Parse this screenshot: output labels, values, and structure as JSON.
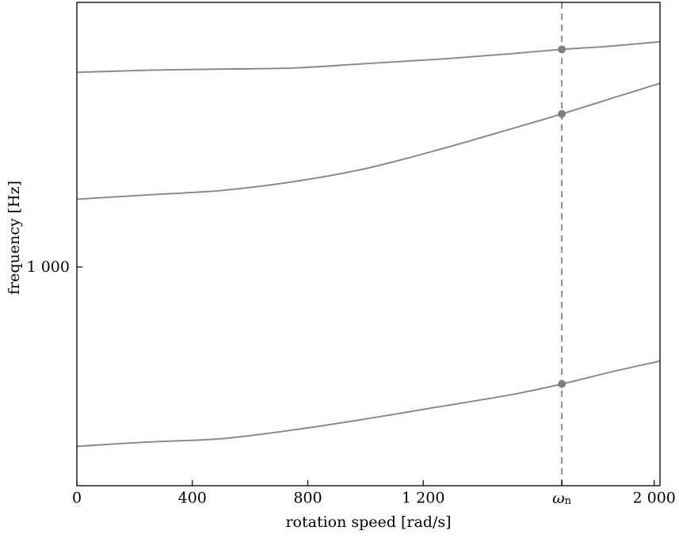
{
  "chart_data": {
    "type": "line",
    "title": "",
    "xlabel": "rotation speed [rad/s]",
    "ylabel": "frequency [Hz]",
    "xlim": [
      0,
      2020
    ],
    "ylim": [
      0,
      2210
    ],
    "grid": false,
    "legend": "none",
    "x_ticks": [
      {
        "value": 0,
        "label": "0"
      },
      {
        "value": 400,
        "label": "400"
      },
      {
        "value": 800,
        "label": "800"
      },
      {
        "value": 1200,
        "label": "1 200"
      },
      {
        "value": 1680,
        "label": "ω",
        "sub": "n",
        "italic": true
      },
      {
        "value": 2000,
        "label": "2 000"
      }
    ],
    "y_ticks": [
      {
        "value": 1000,
        "label": "1 000"
      }
    ],
    "x": [
      0,
      250,
      500,
      750,
      1000,
      1250,
      1500,
      1680,
      1850,
      2020
    ],
    "series": [
      {
        "name": "curve-bottom",
        "y": [
          180,
          200,
          215,
          255,
          305,
          360,
          415,
          465,
          520,
          570
        ]
      },
      {
        "name": "curve-middle",
        "y": [
          1310,
          1330,
          1350,
          1390,
          1450,
          1535,
          1630,
          1700,
          1770,
          1840
        ]
      },
      {
        "name": "curve-top",
        "y": [
          1890,
          1900,
          1905,
          1910,
          1930,
          1950,
          1975,
          1995,
          2010,
          2030
        ]
      }
    ],
    "vline": {
      "x": 1680,
      "style": "dashed",
      "label": "ω",
      "label_sub": "n"
    },
    "markers": [
      {
        "x": 1680,
        "y": 465
      },
      {
        "x": 1680,
        "y": 1700
      },
      {
        "x": 1680,
        "y": 1995
      }
    ],
    "colors": {
      "curve": "#868686",
      "marker": "#7f7f7f",
      "dashed": "#8c8c8c",
      "axis": "#000000",
      "background": "#ffffff"
    }
  }
}
